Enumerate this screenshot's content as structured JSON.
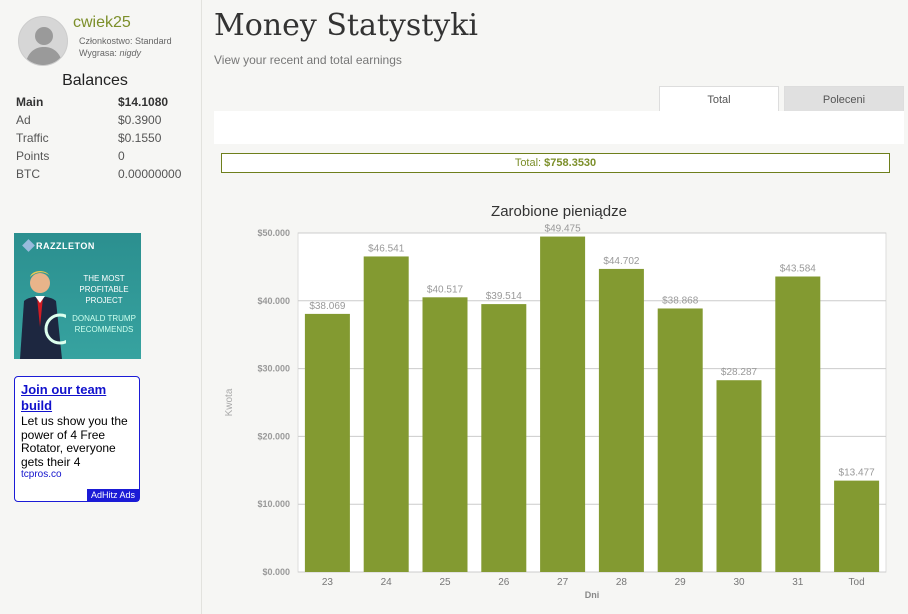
{
  "user": {
    "username": "cwiek25",
    "membership_label": "Członkostwo:",
    "membership_value": "Standard",
    "expires_label": "Wygrasa:",
    "expires_value": "nigdy"
  },
  "balances": {
    "title": "Balances",
    "rows": [
      {
        "label": "Main",
        "value": "$14.1080"
      },
      {
        "label": "Ad",
        "value": "$0.3900"
      },
      {
        "label": "Traffic",
        "value": "$0.1550"
      },
      {
        "label": "Points",
        "value": "0"
      },
      {
        "label": "BTC",
        "value": "0.00000000"
      }
    ]
  },
  "ads": {
    "banner": {
      "brand": "RAZZLETON",
      "line1": "THE MOST PROFITABLE PROJECT",
      "line2": "DONALD TRUMP RECOMMENDS"
    },
    "text_ad": {
      "headline": "Join our team build",
      "body": "Let us show you the power of 4 Free Rotator, everyone gets their 4",
      "url": "tcpros.co",
      "badge": "AdHitz Ads"
    }
  },
  "main": {
    "title": "Money Statystyki",
    "subtitle": "View your recent and total earnings",
    "tabs": [
      {
        "label": "Total",
        "active": true
      },
      {
        "label": "Poleceni",
        "active": false
      }
    ],
    "total_label": "Total:",
    "total_value": "$758.3530"
  },
  "colors": {
    "accent": "#7c8f2a",
    "bar": "#839a31"
  },
  "chart_data": {
    "type": "bar",
    "title": "Zarobione pieniądze",
    "xlabel": "Dni",
    "ylabel": "Kwota",
    "categories": [
      "23",
      "24",
      "25",
      "26",
      "27",
      "28",
      "29",
      "30",
      "31",
      "Tod"
    ],
    "values": [
      38.069,
      46.541,
      40.517,
      39.514,
      49.475,
      44.702,
      38.868,
      28.287,
      43.584,
      13.477
    ],
    "data_labels": [
      "$38.069",
      "$46.541",
      "$40.517",
      "$39.514",
      "$49.475",
      "$44.702",
      "$38.868",
      "$28.287",
      "$43.584",
      "$13.477"
    ],
    "yticks": [
      0,
      10,
      20,
      30,
      40,
      50
    ],
    "ytick_labels": [
      "$0.000",
      "$10.000",
      "$20.000",
      "$30.000",
      "$40.000",
      "$50.000"
    ],
    "ylim": [
      0,
      50
    ],
    "grid": true,
    "legend": false
  }
}
